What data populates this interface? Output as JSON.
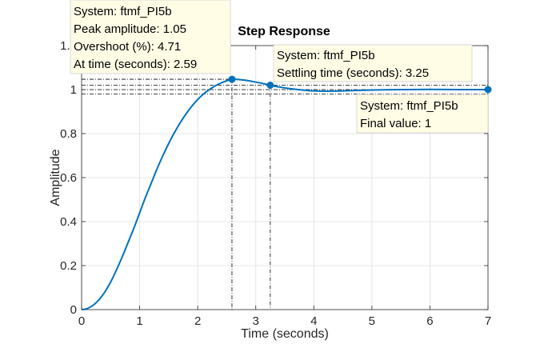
{
  "chart_data": {
    "type": "line",
    "title": "Step Response",
    "xlabel": "Time (seconds)",
    "ylabel": "Amplitude",
    "xlim": [
      0,
      7
    ],
    "ylim": [
      0,
      1.2
    ],
    "xticks": [
      "0",
      "1",
      "2",
      "3",
      "4",
      "5",
      "6",
      "7"
    ],
    "yticks": [
      "0",
      "0.2",
      "0.4",
      "0.6",
      "0.8",
      "1",
      "1.2"
    ],
    "grid": true,
    "series": [
      {
        "name": "ftmf_PI5b",
        "color": "#0072bd",
        "x": [
          0,
          0.1,
          0.2,
          0.3,
          0.4,
          0.5,
          0.6,
          0.7,
          0.8,
          0.9,
          1.0,
          1.1,
          1.2,
          1.3,
          1.4,
          1.5,
          1.6,
          1.7,
          1.8,
          1.9,
          2.0,
          2.1,
          2.2,
          2.3,
          2.4,
          2.5,
          2.59,
          2.7,
          2.8,
          2.9,
          3.0,
          3.1,
          3.25,
          3.4,
          3.6,
          3.8,
          4.0,
          4.3,
          4.6,
          5.0,
          5.5,
          6.0,
          6.5,
          7.0
        ],
        "y": [
          0,
          0.005,
          0.02,
          0.045,
          0.08,
          0.125,
          0.18,
          0.24,
          0.305,
          0.37,
          0.44,
          0.51,
          0.575,
          0.64,
          0.7,
          0.755,
          0.805,
          0.85,
          0.89,
          0.925,
          0.955,
          0.98,
          1.0,
          1.017,
          1.03,
          1.04,
          1.047,
          1.046,
          1.043,
          1.039,
          1.034,
          1.029,
          1.02,
          1.012,
          1.004,
          0.998,
          0.994,
          0.993,
          0.995,
          0.998,
          1.0,
          1.001,
          1.0,
          1.0
        ]
      }
    ],
    "markers": [
      {
        "x": 2.59,
        "y": 1.047
      },
      {
        "x": 3.25,
        "y": 1.02
      },
      {
        "x": 7.0,
        "y": 1.0
      }
    ],
    "datatips": [
      {
        "lines": [
          "System: ftmf_PI5b",
          "Peak amplitude: 1.05",
          "Overshoot (%): 4.71",
          "At time (seconds): 2.59"
        ]
      },
      {
        "lines": [
          "System: ftmf_PI5b",
          "Settling time (seconds): 3.25"
        ]
      },
      {
        "lines": [
          "System: ftmf_PI5b",
          "Final value: 1"
        ]
      }
    ]
  }
}
